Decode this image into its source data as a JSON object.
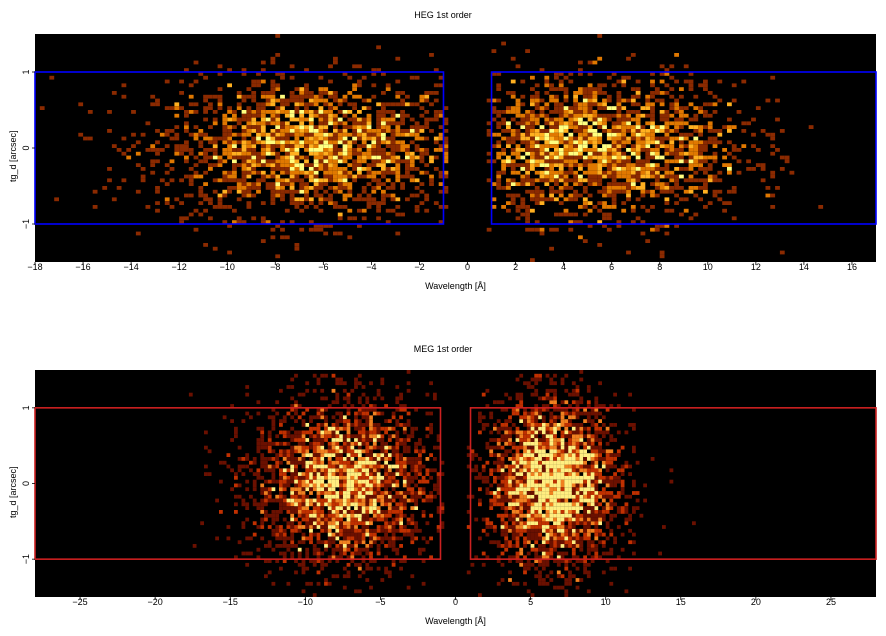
{
  "chart_data": [
    {
      "type": "heatmap",
      "title": "HEG 1st order",
      "xlabel": "Wavelength [Å]",
      "ylabel": "tg_d [arcsec]",
      "xlim": [
        -18,
        17
      ],
      "ylim": [
        -1.5,
        1.5
      ],
      "xticks": [
        -18,
        -16,
        -14,
        -12,
        -10,
        -8,
        -6,
        -4,
        -2,
        0,
        2,
        4,
        6,
        8,
        10,
        12,
        14,
        16
      ],
      "yticks": [
        -1,
        0,
        1
      ],
      "extraction_regions": [
        {
          "x": [
            -18,
            -1
          ],
          "y": [
            -1,
            1
          ]
        },
        {
          "x": [
            1,
            17
          ],
          "y": [
            -1,
            1
          ]
        }
      ],
      "region_color": "#0000ff",
      "background": "#000000",
      "colormap": [
        "#8b2a00",
        "#e07800",
        "#ffb020",
        "#ffff80"
      ],
      "grid": false,
      "legend": "none"
    },
    {
      "type": "heatmap",
      "title": "MEG 1st order",
      "xlabel": "Wavelength [Å]",
      "ylabel": "tg_d [arcsec]",
      "xlim": [
        -28,
        28
      ],
      "ylim": [
        -1.5,
        1.5
      ],
      "xticks": [
        -25,
        -20,
        -15,
        -10,
        -5,
        0,
        5,
        10,
        15,
        20,
        25
      ],
      "yticks": [
        -1,
        0,
        1
      ],
      "extraction_regions": [
        {
          "x": [
            -28,
            -1
          ],
          "y": [
            -1,
            1
          ]
        },
        {
          "x": [
            1,
            28
          ],
          "y": [
            -1,
            1
          ]
        }
      ],
      "region_color": "#cc2020",
      "background": "#000000",
      "colormap": [
        "#6a1000",
        "#c03000",
        "#f08020",
        "#ffee80"
      ],
      "grid": false,
      "legend": "none"
    }
  ]
}
